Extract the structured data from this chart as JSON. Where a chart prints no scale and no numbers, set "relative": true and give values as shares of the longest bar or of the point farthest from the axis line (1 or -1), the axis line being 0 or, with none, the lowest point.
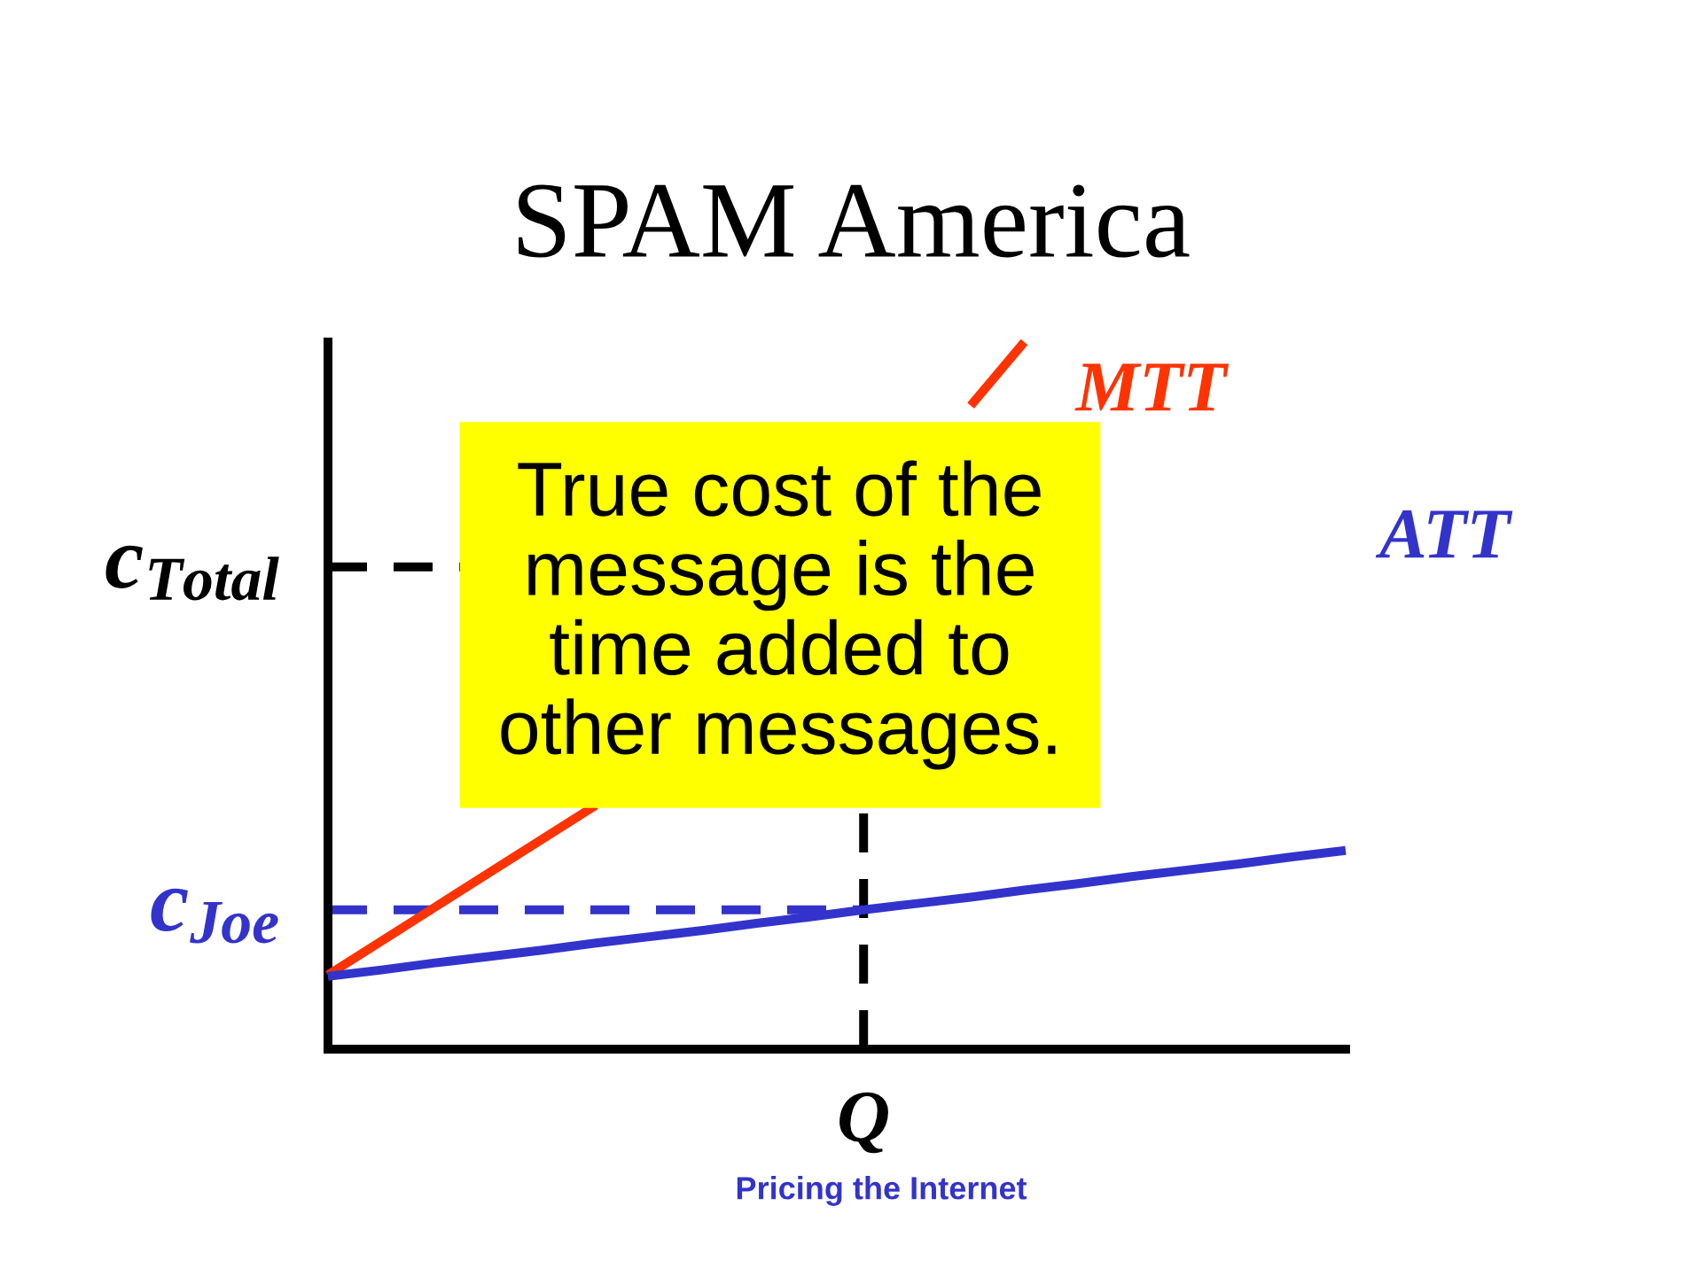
{
  "chart_data": {
    "type": "line",
    "title": "SPAM America",
    "xlabel": "Q",
    "relative": true,
    "categories": [
      null,
      null,
      null,
      null,
      null,
      null,
      null,
      null,
      null,
      null,
      null,
      null,
      null,
      null,
      null,
      null,
      null,
      null,
      null,
      null
    ],
    "series": [
      {
        "name": "MTT",
        "color": "#ff3300",
        "values": [
          0.105,
          0.153,
          0.201,
          0.249,
          0.297,
          0.345,
          null,
          null,
          null,
          null,
          null,
          null,
          0.91,
          1.0,
          null,
          null,
          null,
          null,
          null,
          null
        ]
      },
      {
        "name": "ATT",
        "color": "#3333cc",
        "values": [
          0.103,
          0.112,
          0.122,
          0.131,
          0.14,
          0.15,
          0.159,
          0.168,
          0.178,
          0.187,
          0.197,
          0.206,
          0.215,
          0.225,
          0.234,
          0.244,
          0.253,
          0.262,
          0.272,
          0.281
        ]
      }
    ],
    "ref_lines": [
      {
        "axis": "y",
        "value": 0.682,
        "label": "c$_{Total}$",
        "color": "#000000",
        "line_style": "dashed"
      },
      {
        "axis": "y",
        "value": 0.197,
        "label": "c$_{Joe}$",
        "color": "#3333cc",
        "line_style": "dashed"
      }
    ],
    "annotations": [
      "True cost of the\nmessage is the\ntime added to\nother messages.",
      "Pricing the Internet"
    ]
  }
}
